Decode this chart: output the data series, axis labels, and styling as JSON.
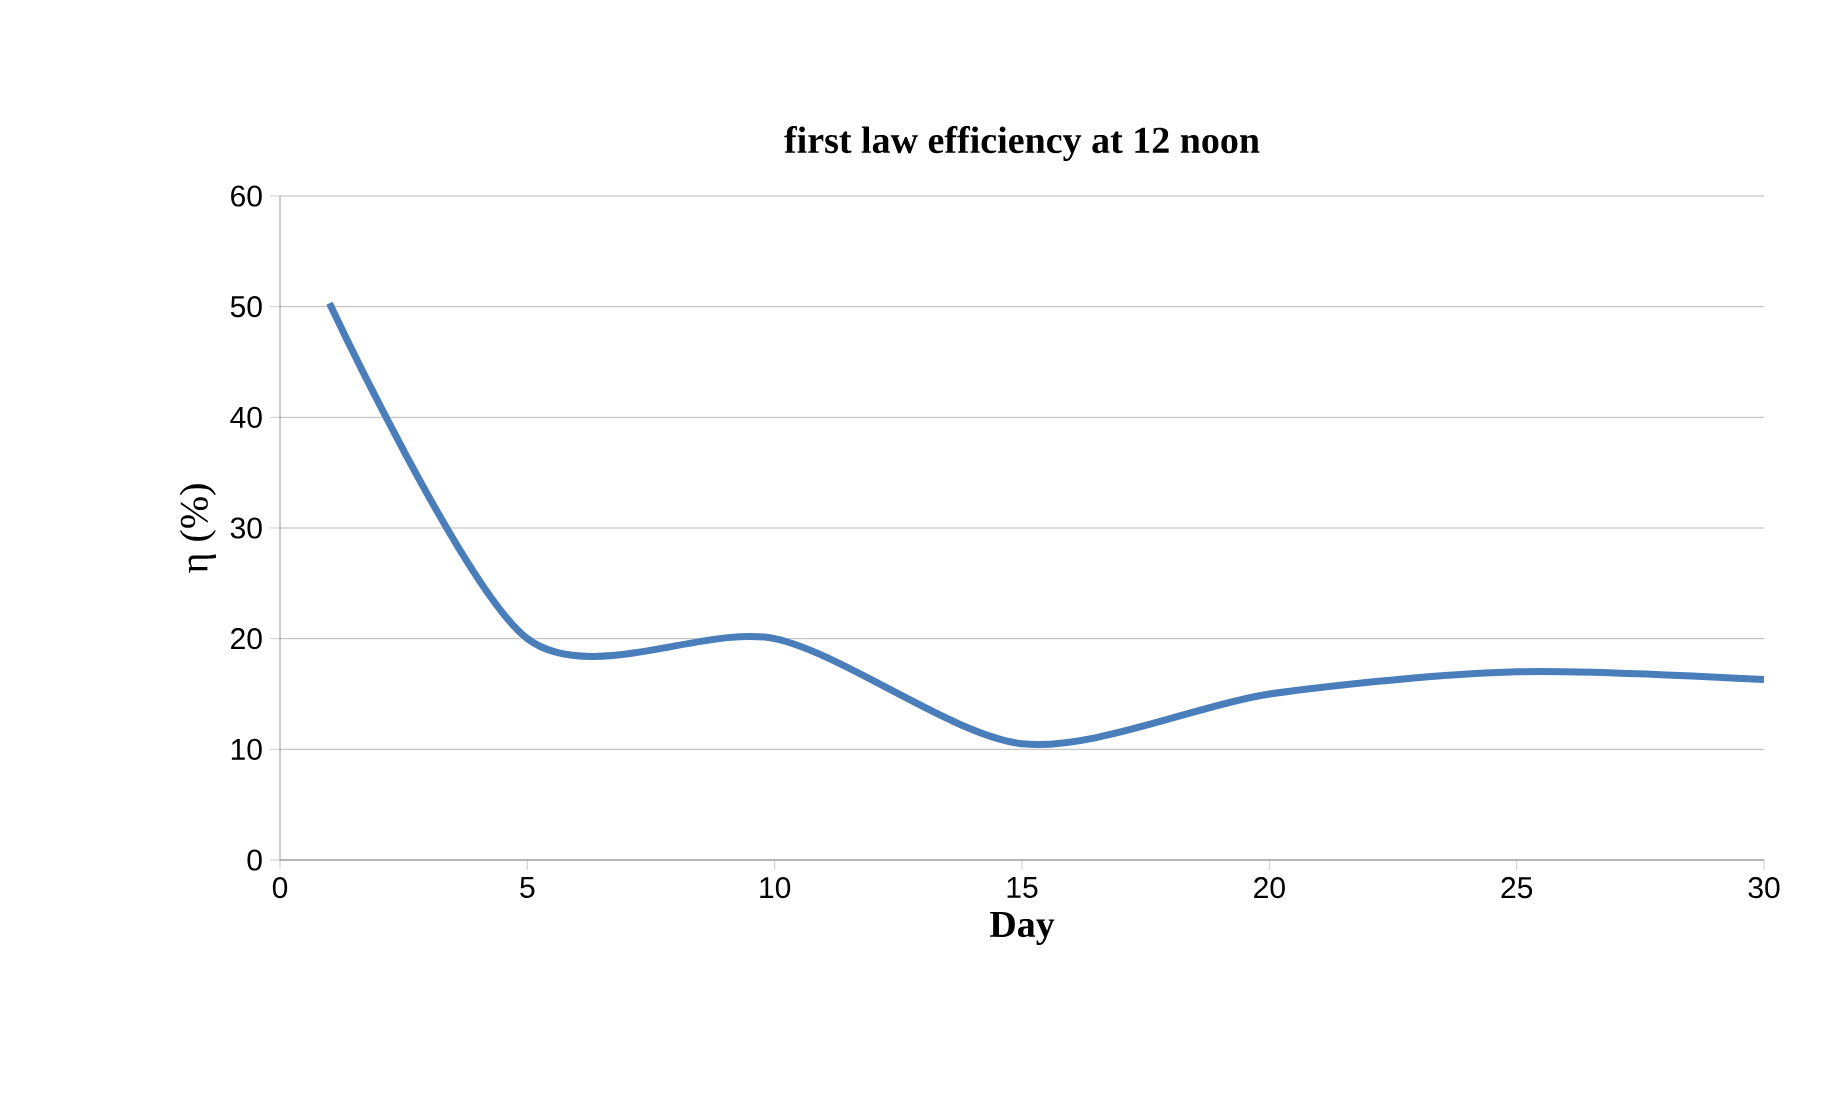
{
  "chart_data": {
    "type": "line",
    "title": "first law efficiency at 12 noon",
    "xlabel": "Day",
    "ylabel": "η (%)",
    "x": [
      1,
      5,
      10,
      15,
      20,
      25,
      30
    ],
    "series": [
      {
        "color": "#4a7ebb",
        "values": [
          50.3,
          20,
          20,
          10.5,
          15,
          17,
          16.3
        ]
      }
    ],
    "xlim": [
      0,
      30
    ],
    "xticks": [
      0,
      5,
      10,
      15,
      20,
      25,
      30
    ],
    "ylim": [
      0,
      60
    ],
    "yticks": [
      0,
      10,
      20,
      30,
      40,
      50,
      60
    ],
    "grid": "y"
  }
}
